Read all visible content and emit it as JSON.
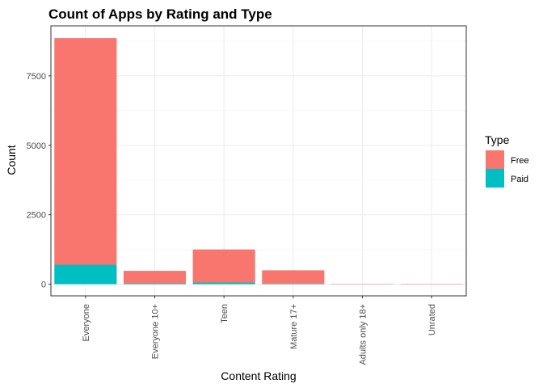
{
  "chart_data": {
    "type": "bar",
    "stacked": true,
    "title": "Count of Apps by Rating and Type",
    "xlabel": "Content Rating",
    "ylabel": "Count",
    "categories": [
      "Everyone",
      "Everyone 10+",
      "Teen",
      "Mature 17+",
      "Adults only 18+",
      "Unrated"
    ],
    "series": [
      {
        "name": "Free",
        "color": "#F8766D",
        "values": [
          8160,
          450,
          1190,
          480,
          3,
          2
        ]
      },
      {
        "name": "Paid",
        "color": "#00BFC4",
        "values": [
          700,
          30,
          60,
          20,
          0,
          0
        ]
      }
    ],
    "yticks": [
      0,
      2500,
      5000,
      7500
    ],
    "ytick_labels": [
      "0",
      "2500",
      "5000",
      "7500"
    ],
    "ylim": [
      -420,
      9300
    ],
    "grid": true,
    "legend": {
      "title": "Type",
      "position": "right"
    }
  }
}
